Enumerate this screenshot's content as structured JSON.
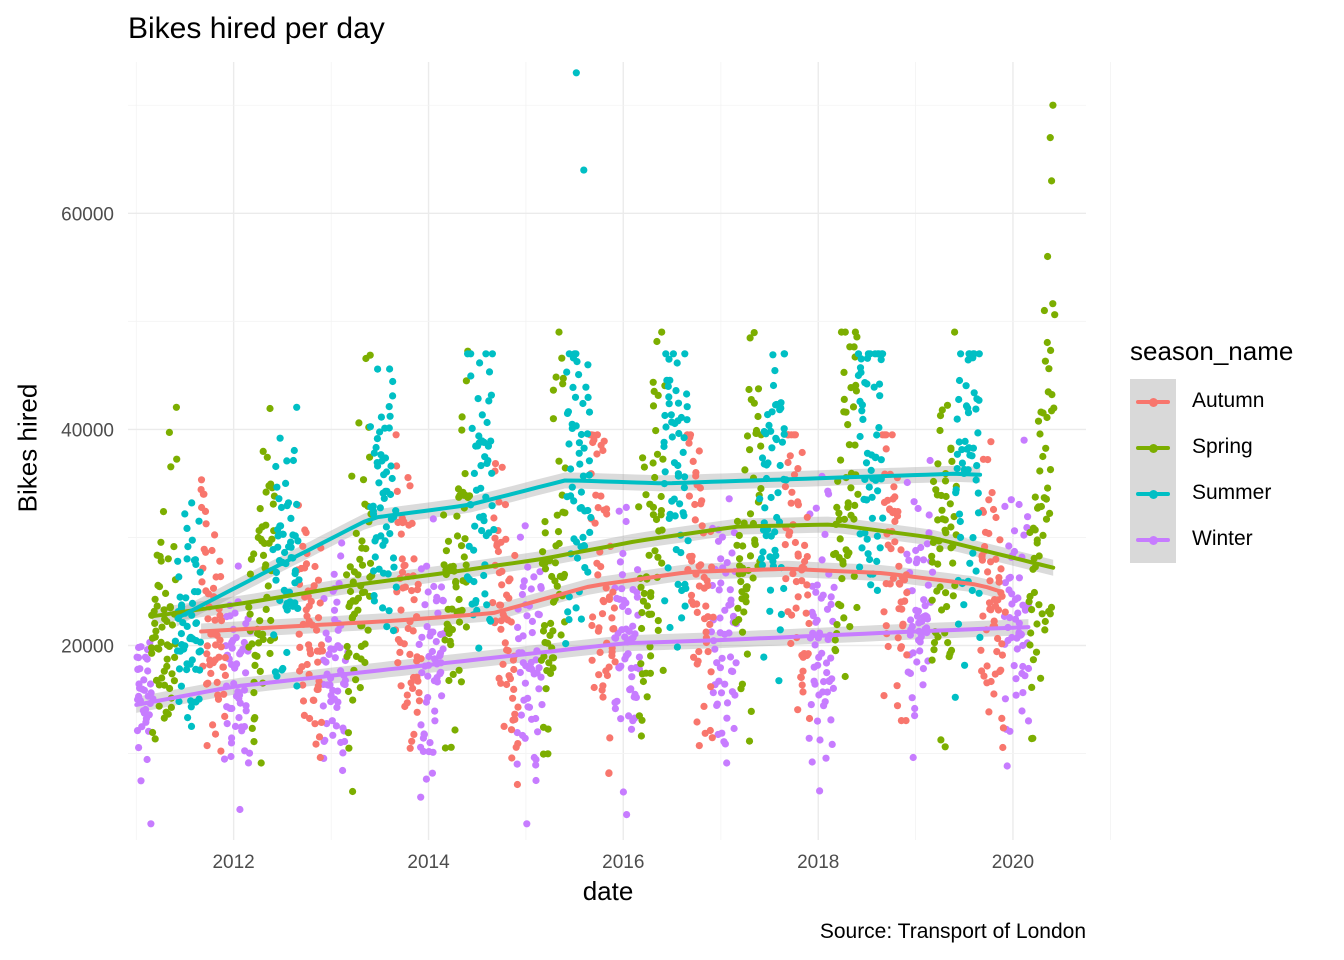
{
  "chart_data": {
    "type": "scatter",
    "title": "Bikes hired per day",
    "caption": "Source: Transport of London",
    "xlabel": "date",
    "ylabel": "Bikes hired",
    "xlim": [
      "2010-12-01",
      "2020-10-01"
    ],
    "ylim": [
      2000,
      74000
    ],
    "x_ticks": [
      "2012",
      "2014",
      "2016",
      "2018",
      "2020"
    ],
    "y_ticks": [
      20000,
      40000,
      60000
    ],
    "y_tick_labels": [
      "20000",
      "40000",
      "60000"
    ],
    "grid": true,
    "legend_title": "season_name",
    "legend_position": "right",
    "series": [
      {
        "name": "Autumn",
        "color": "#F8766D",
        "points_summary": "daily hires Sep–Nov each year, mostly 10000–38000",
        "smooth": [
          [
            "2011-09-01",
            21300
          ],
          [
            "2012-09-01",
            21800
          ],
          [
            "2013-09-01",
            22300
          ],
          [
            "2014-09-01",
            23000
          ],
          [
            "2015-09-01",
            25500
          ],
          [
            "2016-09-01",
            26800
          ],
          [
            "2017-09-01",
            27100
          ],
          [
            "2018-09-01",
            26700
          ],
          [
            "2019-09-01",
            25600
          ],
          [
            "2019-11-15",
            25000
          ]
        ]
      },
      {
        "name": "Spring",
        "color": "#7CAE00",
        "points_summary": "daily hires Mar–May each year, mostly 12000–45000; up to 70000 in 2020",
        "smooth": [
          [
            "2011-03-01",
            22700
          ],
          [
            "2012-03-01",
            24000
          ],
          [
            "2013-03-01",
            25500
          ],
          [
            "2014-03-01",
            26700
          ],
          [
            "2015-03-01",
            28000
          ],
          [
            "2016-03-01",
            29700
          ],
          [
            "2017-03-01",
            31000
          ],
          [
            "2018-03-01",
            31200
          ],
          [
            "2019-03-01",
            30000
          ],
          [
            "2020-05-31",
            27200
          ]
        ]
      },
      {
        "name": "Summer",
        "color": "#00BFC4",
        "points_summary": "daily hires Jun–Aug each year, mostly 20000–47000; outliers 73000 and 64000 in 2015",
        "smooth": [
          [
            "2011-06-01",
            22500
          ],
          [
            "2012-06-01",
            27200
          ],
          [
            "2013-06-01",
            31800
          ],
          [
            "2014-06-01",
            33000
          ],
          [
            "2015-06-01",
            35300
          ],
          [
            "2016-06-01",
            35000
          ],
          [
            "2017-06-01",
            35300
          ],
          [
            "2018-06-01",
            35600
          ],
          [
            "2019-06-01",
            35900
          ],
          [
            "2019-08-31",
            35800
          ]
        ]
      },
      {
        "name": "Winter",
        "color": "#C77CFF",
        "points_summary": "daily hires Dec–Feb each year, mostly 5000–30000",
        "smooth": [
          [
            "2011-01-01",
            14500
          ],
          [
            "2012-01-01",
            16200
          ],
          [
            "2013-01-01",
            17200
          ],
          [
            "2014-01-01",
            18200
          ],
          [
            "2015-01-01",
            19200
          ],
          [
            "2016-01-01",
            20200
          ],
          [
            "2017-01-01",
            20500
          ],
          [
            "2018-01-01",
            20900
          ],
          [
            "2019-01-01",
            21300
          ],
          [
            "2020-02-28",
            21700
          ]
        ]
      }
    ],
    "outliers": [
      {
        "series": "Summer",
        "x": "2015-07-09",
        "y": 73000
      },
      {
        "series": "Summer",
        "x": "2015-08-06",
        "y": 64000
      },
      {
        "series": "Spring",
        "x": "2020-05-30",
        "y": 70000
      },
      {
        "series": "Spring",
        "x": "2020-05-20",
        "y": 67000
      },
      {
        "series": "Spring",
        "x": "2020-05-25",
        "y": 63000
      },
      {
        "series": "Spring",
        "x": "2020-05-10",
        "y": 56000
      },
      {
        "series": "Spring",
        "x": "2020-04-28",
        "y": 51000
      }
    ]
  }
}
